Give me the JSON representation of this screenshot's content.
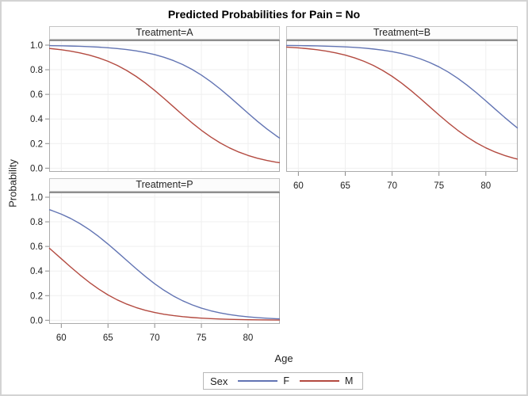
{
  "title": "Predicted Probabilities for Pain = No",
  "axes": {
    "y_label": "Probability",
    "x_label": "Age"
  },
  "legend": {
    "title": "Sex",
    "entries": [
      {
        "label": "F",
        "color_key": "female"
      },
      {
        "label": "M",
        "color_key": "male"
      }
    ]
  },
  "colors": {
    "female": "#6274b3",
    "male": "#b34a40",
    "grid": "#efefef",
    "frame": "#ababab",
    "frame_top": "#8f8f8f",
    "tick": "#8a8a8a",
    "tick_text": "#1e1e1e"
  },
  "chart_data": {
    "type": "line",
    "title": "Predicted Probabilities for Pain = No",
    "xlabel": "Age",
    "ylabel": "Probability",
    "legend_title": "Sex",
    "legend_position": "bottom",
    "grid": true,
    "x_range": [
      58.7,
      83.4
    ],
    "y_range_padded": [
      -0.03,
      1.045
    ],
    "x_ticks": [
      60,
      65,
      70,
      75,
      80
    ],
    "x_tick_labels": [
      "60",
      "65",
      "70",
      "75",
      "80"
    ],
    "y_ticks": [
      0.0,
      0.2,
      0.4,
      0.6,
      0.8,
      1.0
    ],
    "y_tick_labels": [
      "0.0",
      "0.2",
      "0.4",
      "0.6",
      "0.8",
      "1.0"
    ],
    "x": [
      58.7,
      59,
      60,
      61,
      62,
      63,
      64,
      65,
      66,
      67,
      68,
      69,
      70,
      71,
      72,
      73,
      74,
      75,
      76,
      77,
      78,
      79,
      80,
      81,
      82,
      83,
      83.4
    ],
    "panels": [
      {
        "label": "Treatment=A",
        "show_y_axis": true,
        "show_x_axis": false,
        "series": [
          {
            "name": "F",
            "color_key": "female",
            "values": [
              0.9961,
              0.9957,
              0.9944,
              0.9927,
              0.9905,
              0.9876,
              0.9838,
              0.9789,
              0.9724,
              0.9642,
              0.9537,
              0.9402,
              0.923,
              0.9015,
              0.8747,
              0.8421,
              0.8028,
              0.7566,
              0.7035,
              0.6443,
              0.5803,
              0.5135,
              0.4462,
              0.3808,
              0.3195,
              0.2638,
              0.2434
            ]
          },
          {
            "name": "M",
            "color_key": "male",
            "values": [
              0.9732,
              0.971,
              0.9622,
              0.9512,
              0.937,
              0.9191,
              0.8966,
              0.8688,
              0.8348,
              0.7941,
              0.7465,
              0.6921,
              0.6318,
              0.5671,
              0.5,
              0.4329,
              0.3682,
              0.3079,
              0.2535,
              0.2059,
              0.1652,
              0.1312,
              0.1034,
              0.0809,
              0.063,
              0.0488,
              0.0441
            ]
          }
        ]
      },
      {
        "label": "Treatment=B",
        "show_y_axis": false,
        "show_x_axis": true,
        "series": [
          {
            "name": "F",
            "color_key": "female",
            "values": [
              0.9974,
              0.9972,
              0.9963,
              0.9951,
              0.9936,
              0.9917,
              0.9891,
              0.9857,
              0.9815,
              0.9759,
              0.9686,
              0.9593,
              0.9473,
              0.9321,
              0.9129,
              0.8888,
              0.8593,
              0.8233,
              0.7806,
              0.7309,
              0.6746,
              0.6128,
              0.5471,
              0.4798,
              0.4131,
              0.3496,
              0.3254
            ]
          },
          {
            "name": "M",
            "color_key": "male",
            "values": [
              0.9842,
              0.9829,
              0.9777,
              0.971,
              0.9622,
              0.9512,
              0.937,
              0.9191,
              0.8966,
              0.8688,
              0.8348,
              0.7941,
              0.7465,
              0.6921,
              0.6318,
              0.5671,
              0.5,
              0.4329,
              0.3682,
              0.3079,
              0.2535,
              0.2059,
              0.1652,
              0.1312,
              0.1034,
              0.0809,
              0.0732
            ]
          }
        ]
      },
      {
        "label": "Treatment=P",
        "show_y_axis": true,
        "show_x_axis": true,
        "series": [
          {
            "name": "F",
            "color_key": "female",
            "values": [
              0.8991,
              0.8915,
              0.8625,
              0.8273,
              0.7851,
              0.7362,
              0.6805,
              0.6192,
              0.5538,
              0.4865,
              0.4197,
              0.3557,
              0.2964,
              0.2434,
              0.1972,
              0.1579,
              0.1253,
              0.0985,
              0.077,
              0.0598,
              0.0463,
              0.0358,
              0.0276,
              0.0211,
              0.0162,
              0.0124,
              0.0112
            ]
          },
          {
            "name": "M",
            "color_key": "male",
            "values": [
              0.5869,
              0.5671,
              0.5,
              0.4329,
              0.3682,
              0.3079,
              0.2535,
              0.2059,
              0.1652,
              0.1312,
              0.1034,
              0.0809,
              0.063,
              0.0488,
              0.0377,
              0.029,
              0.0223,
              0.0171,
              0.0131,
              0.01,
              0.0077,
              0.0059,
              0.0045,
              0.0034,
              0.0026,
              0.002,
              0.0018
            ]
          }
        ]
      }
    ]
  }
}
